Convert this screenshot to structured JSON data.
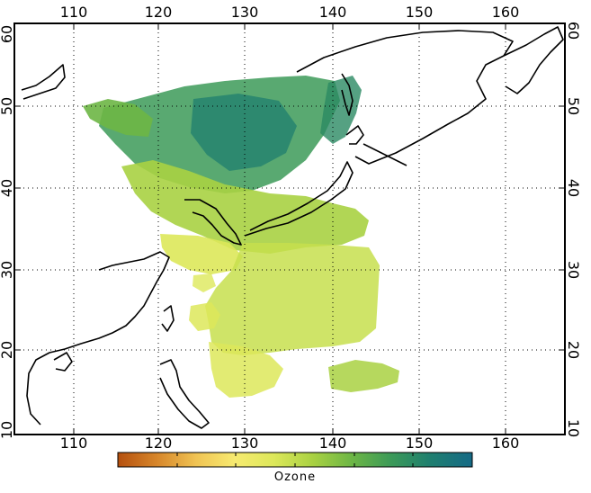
{
  "map": {
    "lon_ticks": [
      "110",
      "120",
      "130",
      "140",
      "150",
      "160"
    ],
    "lat_ticks": [
      "10",
      "20",
      "30",
      "40",
      "50",
      "60"
    ],
    "lon_range": [
      104,
      165
    ],
    "lat_range": [
      9,
      61
    ],
    "grid": "dotted"
  },
  "colorbar": {
    "label": "Ozone",
    "colors": [
      "#b5500e",
      "#d7862a",
      "#f0c353",
      "#f7ea70",
      "#dde85a",
      "#a9d142",
      "#6db645",
      "#3c9a58",
      "#1f7f6f",
      "#156a86"
    ]
  }
}
